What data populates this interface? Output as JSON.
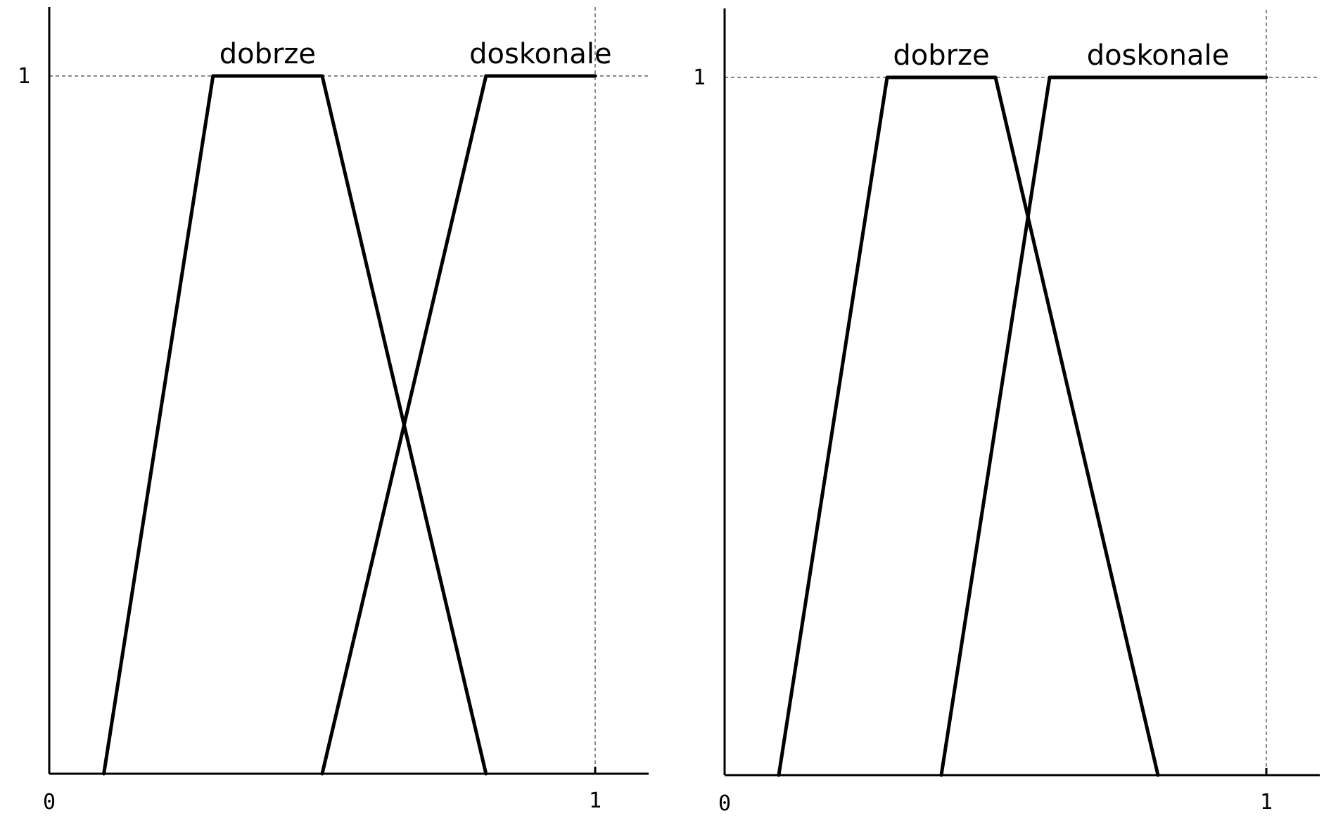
{
  "chart_data": [
    {
      "type": "line",
      "xlim": [
        0,
        1
      ],
      "ylim": [
        0,
        1
      ],
      "x_ticks": [
        "0",
        "1"
      ],
      "y_ticks": [
        "1"
      ],
      "grid": "dashed reference lines at x=1 and y=1",
      "series": [
        {
          "name": "dobrze",
          "x": [
            0.1,
            0.3,
            0.5,
            0.8
          ],
          "y": [
            0,
            1,
            1,
            0
          ]
        },
        {
          "name": "doskonale",
          "x": [
            0.5,
            0.8,
            1.0
          ],
          "y": [
            0,
            1,
            1
          ]
        }
      ]
    },
    {
      "type": "line",
      "xlim": [
        0,
        1
      ],
      "ylim": [
        0,
        1
      ],
      "x_ticks": [
        "0",
        "1"
      ],
      "y_ticks": [
        "1"
      ],
      "grid": "dashed reference lines at x=1 and y=1",
      "series": [
        {
          "name": "dobrze",
          "x": [
            0.1,
            0.3,
            0.5,
            0.8
          ],
          "y": [
            0,
            1,
            1,
            0
          ]
        },
        {
          "name": "doskonale",
          "x": [
            0.4,
            0.6,
            1.0
          ],
          "y": [
            0,
            1,
            1
          ]
        }
      ]
    }
  ],
  "colors": {
    "line": "#000000",
    "guide": "#8a8a8a",
    "background": "#ffffff"
  }
}
